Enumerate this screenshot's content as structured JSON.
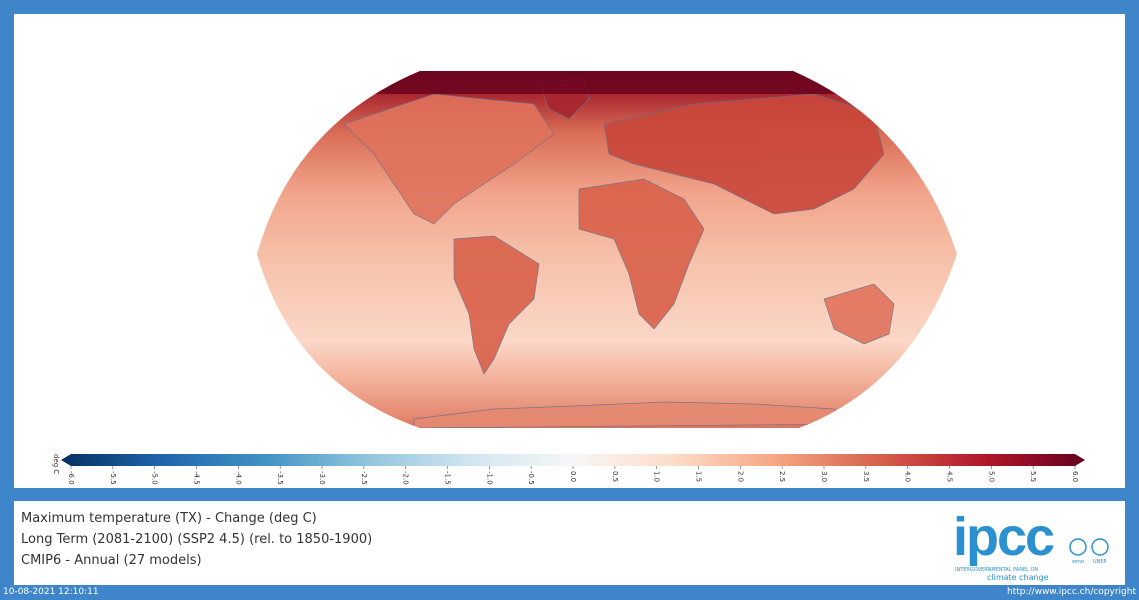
{
  "colorbar": {
    "unit": "deg C",
    "ticks": [
      "-6.0",
      "-5.5",
      "-5.0",
      "-4.5",
      "-4.0",
      "-3.5",
      "-3.0",
      "-2.5",
      "-2.0",
      "-1.5",
      "-1.0",
      "-0.5",
      "0.0",
      "0.5",
      "1.0",
      "1.5",
      "2.0",
      "2.5",
      "3.0",
      "3.5",
      "4.0",
      "4.5",
      "5.0",
      "5.5",
      "6.0"
    ],
    "range": [
      -6.0,
      6.0
    ],
    "colors": [
      "#053061",
      "#2166ac",
      "#4393c3",
      "#92c5de",
      "#d1e5f0",
      "#f7f7f7",
      "#fddbc7",
      "#f4a582",
      "#d6604d",
      "#b2182b",
      "#67001f"
    ]
  },
  "info": {
    "line1": "Maximum temperature (TX) - Change (deg C)",
    "line2": "Long Term (2081-2100) (SSP2 4.5) (rel. to 1850-1900)",
    "line3": "CMIP6 - Annual (27 models)"
  },
  "logo": {
    "name": "ipcc",
    "subtitle": "INTERGOVERNMENTAL PANEL ON",
    "subtitle2": "climate change",
    "wmo": "wmo",
    "unep": "UNEP",
    "color": "#2a90d0"
  },
  "footer": {
    "timestamp": "10-08-2021 12:10:11",
    "url": "http://www.ipcc.ch/copyright"
  }
}
